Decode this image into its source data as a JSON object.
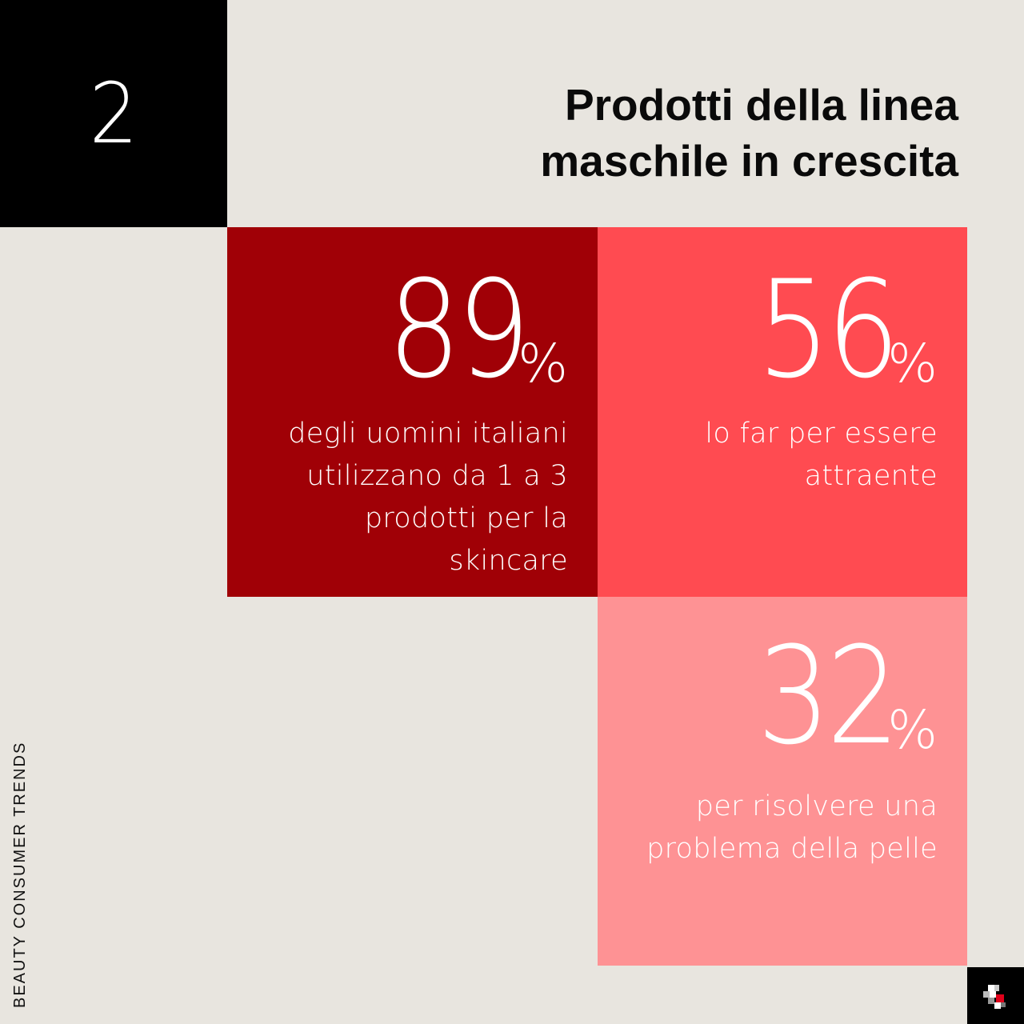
{
  "slide_number": "2",
  "title": {
    "line1": "Prodotti della linea",
    "line2": "maschile in crescita"
  },
  "stats": [
    {
      "value": "89",
      "unit": "%",
      "lines": [
        "degli uomini italiani",
        "utilizzano da 1 a 3",
        "prodotti per la",
        "skincare"
      ],
      "color": "#a00006"
    },
    {
      "value": "56",
      "unit": "%",
      "lines": [
        "lo far per essere",
        "attraente"
      ],
      "color": "#ff4b51"
    },
    {
      "value": "32",
      "unit": "%",
      "lines": [
        "per risolvere una",
        "problema della pelle"
      ],
      "color": "#fe9294"
    }
  ],
  "side_label": "BEAUTY CONSUMER TRENDS",
  "logo_icon": "brand-logo-icon",
  "colors": {
    "background": "#e8e5df",
    "dark": "#000000",
    "accent_dark": "#a00006",
    "accent": "#ff4b51",
    "accent_light": "#fe9294"
  }
}
